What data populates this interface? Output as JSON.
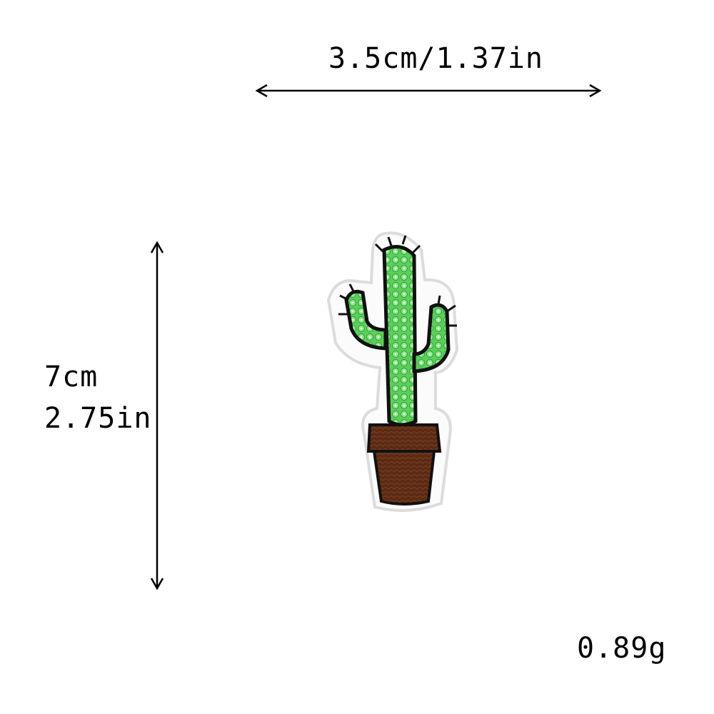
{
  "dimensions": {
    "width_label": "3.5cm/1.37in",
    "height_cm": "7cm",
    "height_in": "2.75in",
    "weight": "0.89g"
  },
  "colors": {
    "background": "#ffffff",
    "cactus_green": "#5ccf5a",
    "outline": "#111111",
    "pot_brown": "#5a2a14"
  },
  "image": {
    "subject": "cactus-sequin-patch"
  }
}
